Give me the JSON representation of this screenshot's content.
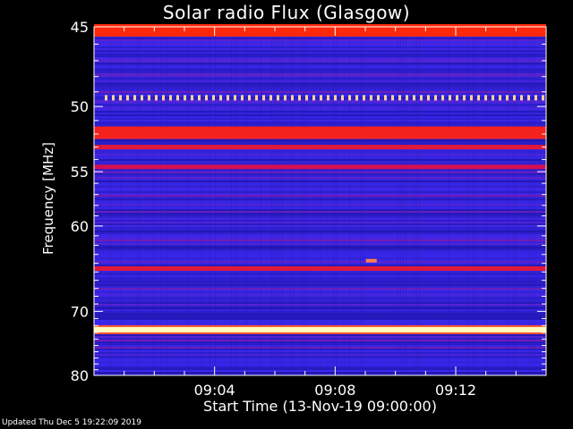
{
  "chart_data": {
    "type": "heatmap",
    "title": "Solar radio Flux (Glasgow)",
    "xlabel": "Start Time (13-Nov-19 09:00:00)",
    "ylabel": "Frequency [MHz]",
    "y_ticks": [
      45,
      50,
      55,
      60,
      70,
      80
    ],
    "y_range": [
      45,
      80
    ],
    "y_scale": "reciprocal",
    "x_ticks": [
      "09:04",
      "09:08",
      "09:12"
    ],
    "x_range_minutes": [
      0,
      15
    ],
    "x_tick_minutes": [
      4,
      8,
      12
    ],
    "colormap": "blue-red-yellow",
    "bands": [
      {
        "freq": 45.2,
        "intensity": 0.75
      },
      {
        "freq": 49.4,
        "intensity": 0.95,
        "dashed": true
      },
      {
        "freq": 51.9,
        "intensity": 0.7
      },
      {
        "freq": 53.0,
        "intensity": 0.62
      },
      {
        "freq": 54.6,
        "intensity": 0.55
      },
      {
        "freq": 64.6,
        "intensity": 0.62
      },
      {
        "freq": 72.6,
        "intensity": 1.0
      }
    ],
    "burst": {
      "minute": 9.2,
      "freq": 63.7
    }
  },
  "footer": {
    "updated": "Updated Thu Dec  5 19:22:09 2019"
  }
}
